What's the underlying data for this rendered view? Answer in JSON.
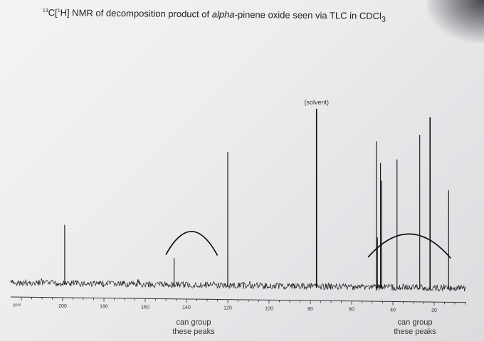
{
  "title": {
    "sup": "13",
    "main": "C[",
    "sup2": "1",
    "rest": "H] NMR of decomposition product of ",
    "italic": "alpha",
    "end": "-pinene oxide seen via TLC in CDCl",
    "sub": "3"
  },
  "chart_data": {
    "type": "line",
    "title": "13C[1H] NMR of decomposition product of alpha-pinene oxide seen via TLC in CDCl3",
    "xlabel": "ppm",
    "ylabel": "",
    "x_reversed": true,
    "xlim": [
      220,
      0
    ],
    "x_ticks": [
      200,
      180,
      160,
      140,
      120,
      100,
      80,
      60,
      40,
      20
    ],
    "x_tick_labels": [
      "200",
      "180",
      "160",
      "140",
      "120",
      "100",
      "80",
      "60",
      "40",
      "20"
    ],
    "baseline_noise": true,
    "peaks": [
      {
        "ppm": 199,
        "height": 0.33
      },
      {
        "ppm": 146,
        "height": 0.15
      },
      {
        "ppm": 120,
        "height": 0.75,
        "label": ""
      },
      {
        "ppm": 77,
        "height": 1.0,
        "label": "(solvent)"
      },
      {
        "ppm": 48,
        "height": 0.82
      },
      {
        "ppm": 47.5,
        "height": 0.28
      },
      {
        "ppm": 46,
        "height": 0.7
      },
      {
        "ppm": 45.5,
        "height": 0.6
      },
      {
        "ppm": 38,
        "height": 0.72
      },
      {
        "ppm": 27,
        "height": 0.86
      },
      {
        "ppm": 22,
        "height": 0.96
      },
      {
        "ppm": 13,
        "height": 0.55
      }
    ],
    "annotations": [
      {
        "text": "(solvent)",
        "ppm": 77
      },
      {
        "text": "can group these peaks",
        "ppm_range": [
          150,
          125
        ]
      },
      {
        "text": "can group these peaks",
        "ppm_range": [
          52,
          12
        ]
      }
    ]
  },
  "axis": {
    "unit_label": "ppm",
    "tick_labels": [
      "200",
      "180",
      "160",
      "140",
      "120",
      "100",
      "80",
      "60",
      "40",
      "20"
    ]
  },
  "annotations": {
    "solvent": "(solvent)",
    "group_left_line1": "can group",
    "group_left_line2": "these peaks",
    "group_right_line1": "can group",
    "group_right_line2": "these peaks"
  }
}
